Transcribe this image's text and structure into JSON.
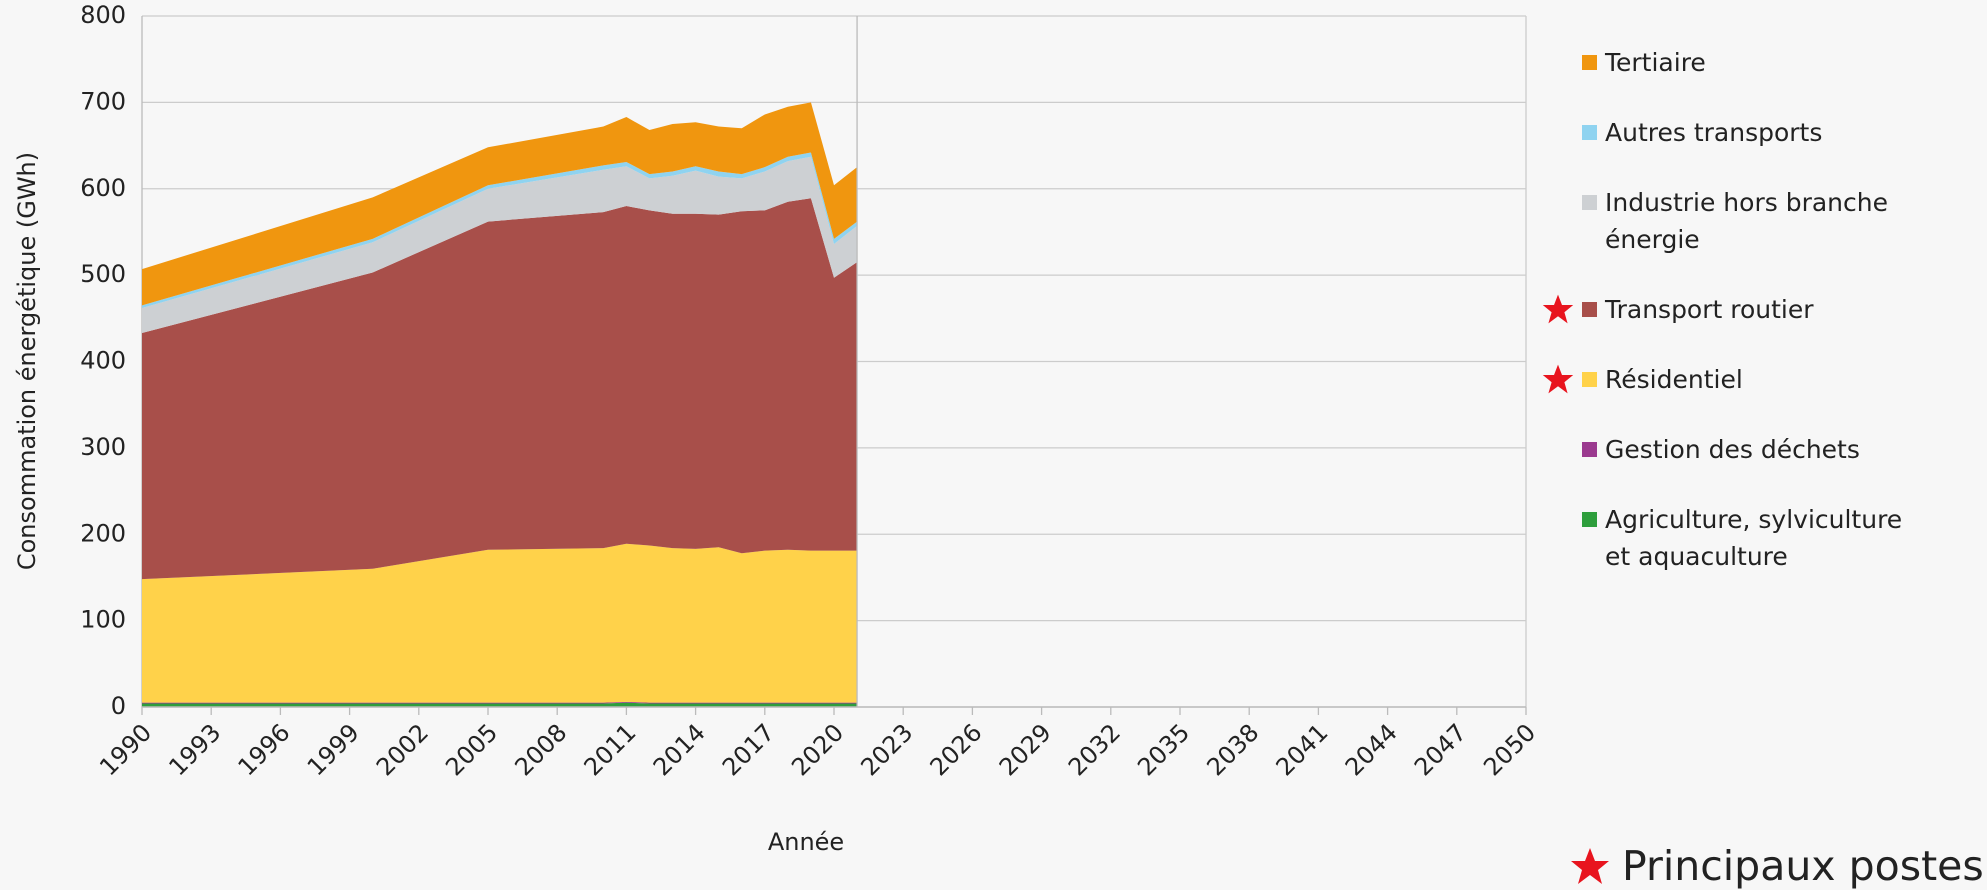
{
  "chart_data": {
    "type": "stacked_area",
    "x_label": "Année",
    "y_label": "Consommation énergétique (GWh)",
    "x": [
      1990,
      2000,
      2005,
      2010,
      2011,
      2012,
      2013,
      2014,
      2015,
      2016,
      2017,
      2018,
      2019,
      2020,
      2021
    ],
    "series": [
      {
        "name": "Agriculture, sylviculture et aquaculture",
        "color": "#2e9e3c",
        "values": [
          4,
          4,
          4,
          4,
          5,
          4,
          4,
          4,
          4,
          4,
          4,
          4,
          4,
          4,
          4
        ]
      },
      {
        "name": "Gestion des déchets",
        "color": "#9b3a8f",
        "values": [
          1,
          1,
          1,
          1,
          1,
          1,
          1,
          1,
          1,
          1,
          1,
          1,
          1,
          1,
          1
        ]
      },
      {
        "name": "Résidentiel",
        "color": "#ffd24a",
        "highlighted": true,
        "values": [
          143,
          155,
          177,
          179,
          183,
          182,
          179,
          178,
          180,
          173,
          176,
          177,
          176,
          176,
          176
        ]
      },
      {
        "name": "Transport routier",
        "color": "#a84f4a",
        "highlighted": true,
        "values": [
          285,
          343,
          380,
          389,
          391,
          388,
          387,
          388,
          385,
          396,
          394,
          403,
          408,
          316,
          334
        ]
      },
      {
        "name": "Industrie hors branche énergie",
        "color": "#cdd0d3",
        "values": [
          29,
          35,
          38,
          49,
          46,
          37,
          44,
          50,
          44,
          38,
          45,
          47,
          48,
          39,
          42
        ]
      },
      {
        "name": "Autres transports",
        "color": "#8fd3f0",
        "values": [
          3,
          4,
          4,
          5,
          5,
          5,
          5,
          5,
          6,
          5,
          5,
          5,
          5,
          6,
          5
        ]
      },
      {
        "name": "Tertiaire",
        "color": "#f0960f",
        "values": [
          42,
          48,
          44,
          45,
          52,
          51,
          55,
          51,
          52,
          53,
          61,
          58,
          58,
          62,
          63
        ]
      }
    ],
    "xlim": [
      1990,
      2050
    ],
    "xticks": [
      1990,
      1993,
      1996,
      1999,
      2002,
      2005,
      2008,
      2011,
      2014,
      2017,
      2020,
      2023,
      2026,
      2029,
      2032,
      2035,
      2038,
      2041,
      2044,
      2047,
      2050
    ],
    "ylim": [
      0,
      800
    ],
    "yticks": [
      0,
      100,
      200,
      300,
      400,
      500,
      600,
      700,
      800
    ],
    "grid": true,
    "note": "Principaux postes"
  }
}
